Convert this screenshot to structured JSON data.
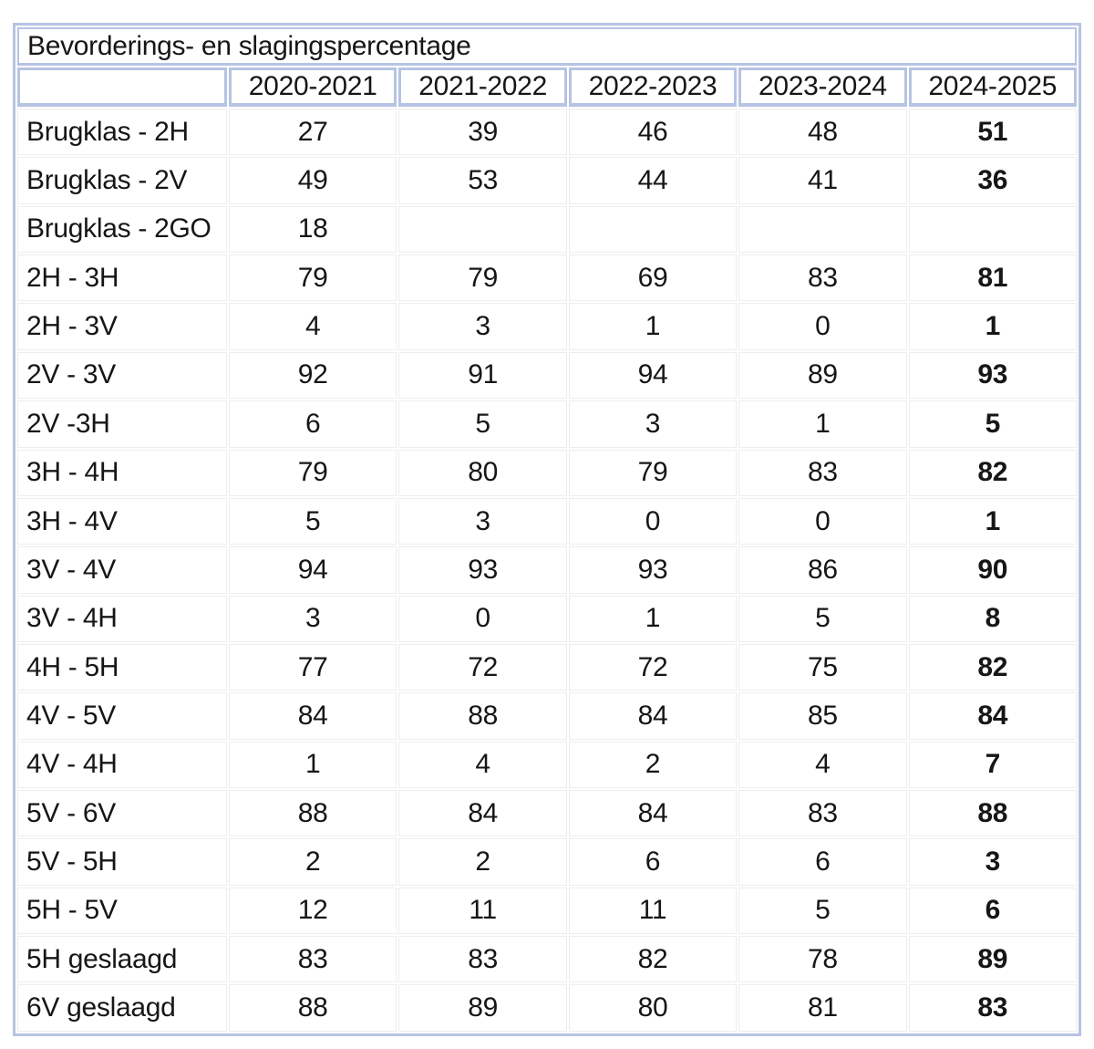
{
  "title": "Bevorderings- en slagingspercentage",
  "columns": [
    "",
    "2020-2021",
    "2021-2022",
    "2022-2023",
    "2023-2024",
    "2024-2025"
  ],
  "rows": [
    {
      "label": "Brugklas - 2H",
      "values": [
        "27",
        "39",
        "46",
        "48",
        "51"
      ]
    },
    {
      "label": "Brugklas - 2V",
      "values": [
        "49",
        "53",
        "44",
        "41",
        "36"
      ]
    },
    {
      "label": "Brugklas - 2GO",
      "values": [
        "18",
        "",
        "",
        "",
        ""
      ]
    },
    {
      "label": "2H - 3H",
      "values": [
        "79",
        "79",
        "69",
        "83",
        "81"
      ]
    },
    {
      "label": "2H - 3V",
      "values": [
        "4",
        "3",
        "1",
        "0",
        "1"
      ]
    },
    {
      "label": "2V - 3V",
      "values": [
        "92",
        "91",
        "94",
        "89",
        "93"
      ]
    },
    {
      "label": "2V -3H",
      "values": [
        "6",
        "5",
        "3",
        "1",
        "5"
      ]
    },
    {
      "label": "3H - 4H",
      "values": [
        "79",
        "80",
        "79",
        "83",
        "82"
      ]
    },
    {
      "label": "3H - 4V",
      "values": [
        "5",
        "3",
        "0",
        "0",
        "1"
      ]
    },
    {
      "label": "3V - 4V",
      "values": [
        "94",
        "93",
        "93",
        "86",
        "90"
      ]
    },
    {
      "label": "3V - 4H",
      "values": [
        "3",
        "0",
        "1",
        "5",
        "8"
      ]
    },
    {
      "label": "4H - 5H",
      "values": [
        "77",
        "72",
        "72",
        "75",
        "82"
      ]
    },
    {
      "label": "4V - 5V",
      "values": [
        "84",
        "88",
        "84",
        "85",
        "84"
      ]
    },
    {
      "label": "4V - 4H",
      "values": [
        "1",
        "4",
        "2",
        "4",
        "7"
      ]
    },
    {
      "label": "5V - 6V",
      "values": [
        "88",
        "84",
        "84",
        "83",
        "88"
      ]
    },
    {
      "label": "5V - 5H",
      "values": [
        "2",
        "2",
        "6",
        "6",
        "3"
      ]
    },
    {
      "label": "5H - 5V",
      "values": [
        "12",
        "11",
        "11",
        "5",
        "6"
      ]
    },
    {
      "label": "5H geslaagd",
      "values": [
        "83",
        "83",
        "82",
        "78",
        "89"
      ]
    },
    {
      "label": "6V geslaagd",
      "values": [
        "88",
        "89",
        "80",
        "81",
        "83"
      ]
    }
  ],
  "colors": {
    "border_blue": "#b6c3e3",
    "grid_gray": "#eeeeef",
    "text": "#161616"
  },
  "chart_data": {
    "type": "table",
    "title": "Bevorderings- en slagingspercentage",
    "columns": [
      "",
      "2020-2021",
      "2021-2022",
      "2022-2023",
      "2023-2024",
      "2024-2025"
    ],
    "rows": [
      [
        "Brugklas - 2H",
        27,
        39,
        46,
        48,
        51
      ],
      [
        "Brugklas - 2V",
        49,
        53,
        44,
        41,
        36
      ],
      [
        "Brugklas - 2GO",
        18,
        null,
        null,
        null,
        null
      ],
      [
        "2H - 3H",
        79,
        79,
        69,
        83,
        81
      ],
      [
        "2H - 3V",
        4,
        3,
        1,
        0,
        1
      ],
      [
        "2V - 3V",
        92,
        91,
        94,
        89,
        93
      ],
      [
        "2V -3H",
        6,
        5,
        3,
        1,
        5
      ],
      [
        "3H - 4H",
        79,
        80,
        79,
        83,
        82
      ],
      [
        "3H - 4V",
        5,
        3,
        0,
        0,
        1
      ],
      [
        "3V - 4V",
        94,
        93,
        93,
        86,
        90
      ],
      [
        "3V - 4H",
        3,
        0,
        1,
        5,
        8
      ],
      [
        "4H - 5H",
        77,
        72,
        72,
        75,
        82
      ],
      [
        "4V - 5V",
        84,
        88,
        84,
        85,
        84
      ],
      [
        "4V - 4H",
        1,
        4,
        2,
        4,
        7
      ],
      [
        "5V - 6V",
        88,
        84,
        84,
        83,
        88
      ],
      [
        "5V - 5H",
        2,
        2,
        6,
        6,
        3
      ],
      [
        "5H - 5V",
        12,
        11,
        11,
        5,
        6
      ],
      [
        "5H geslaagd",
        83,
        83,
        82,
        78,
        89
      ],
      [
        "6V geslaagd",
        88,
        89,
        80,
        81,
        83
      ]
    ],
    "layout_hints": {
      "last_column_bold": true,
      "header_border_color": "#b6c3e3",
      "body_grid_color": "#eeeeef",
      "empty_cells": "Brugklas - 2GO row has no data for 2021-2022 through 2024-2025"
    }
  }
}
